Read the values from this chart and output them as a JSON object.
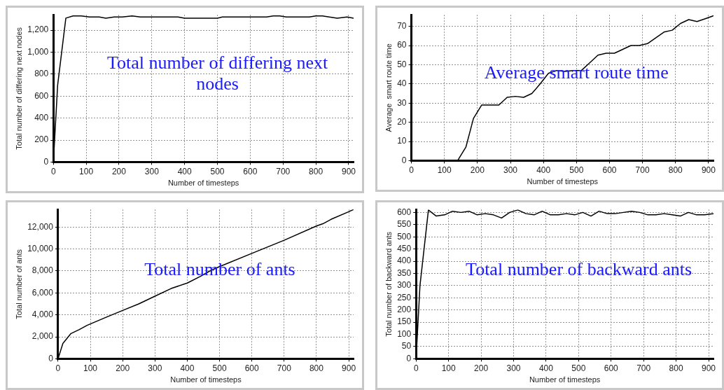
{
  "chart_data": [
    {
      "type": "line",
      "title": "Total number of differing next nodes",
      "xlabel": "Number of timesteps",
      "ylabel": "Total number of differing next nodes",
      "xlim": [
        0,
        915
      ],
      "ylim": [
        0,
        1340
      ],
      "xticks": [
        0,
        100,
        200,
        300,
        400,
        500,
        600,
        700,
        800,
        900
      ],
      "yticks": [
        0,
        200,
        400,
        600,
        800,
        {
          "value": 1000,
          "label": "1,000"
        },
        {
          "value": 1200,
          "label": "1,200"
        }
      ],
      "grid": true,
      "marker": "none",
      "line_style": "solid",
      "series": [
        {
          "color": "#000000",
          "x": [
            0,
            13,
            38,
            60,
            85,
            110,
            140,
            160,
            185,
            210,
            240,
            265,
            300,
            380,
            400,
            500,
            515,
            650,
            670,
            690,
            710,
            780,
            800,
            820,
            865,
            895,
            915
          ],
          "values": [
            0,
            700,
            1310,
            1330,
            1330,
            1320,
            1320,
            1310,
            1320,
            1320,
            1330,
            1320,
            1320,
            1320,
            1310,
            1310,
            1320,
            1320,
            1330,
            1330,
            1320,
            1320,
            1330,
            1330,
            1310,
            1320,
            1310
          ]
        }
      ]
    },
    {
      "type": "line",
      "title": "Average smart route time",
      "xlabel": "Number of timesteps",
      "ylabel": "Average  smart route time",
      "xlim": [
        0,
        915
      ],
      "ylim": [
        0,
        76
      ],
      "xticks": [
        0,
        100,
        200,
        300,
        400,
        500,
        600,
        700,
        800,
        900
      ],
      "yticks": [
        0,
        10,
        20,
        30,
        40,
        50,
        60,
        70
      ],
      "grid": true,
      "marker": "none",
      "line_style": "solid",
      "series": [
        {
          "color": "#000000",
          "x": [
            0,
            140,
            165,
            188,
            213,
            265,
            290,
            315,
            340,
            365,
            390,
            415,
            440,
            465,
            490,
            515,
            540,
            565,
            590,
            615,
            640,
            665,
            690,
            715,
            740,
            765,
            790,
            815,
            840,
            865,
            890,
            915
          ],
          "values": [
            0,
            0,
            7,
            22,
            29,
            29,
            33,
            33.5,
            33,
            35,
            40,
            45.5,
            47,
            46.5,
            47,
            47,
            51,
            55,
            56,
            56,
            58,
            60,
            60,
            61,
            64,
            67,
            68,
            71.5,
            73.5,
            72.5,
            74,
            75.5
          ]
        }
      ]
    },
    {
      "type": "line",
      "title": "Total number of ants",
      "xlabel": "Number of timesteps",
      "ylabel": "Total number of ants",
      "xlim": [
        0,
        915
      ],
      "ylim": [
        0,
        13600
      ],
      "xticks": [
        0,
        100,
        200,
        300,
        400,
        500,
        600,
        700,
        800,
        900
      ],
      "yticks": [
        0,
        {
          "value": 2000,
          "label": "2,000"
        },
        {
          "value": 4000,
          "label": "4,000"
        },
        {
          "value": 6000,
          "label": "6,000"
        },
        {
          "value": 8000,
          "label": "8,000"
        },
        {
          "value": 10000,
          "label": "10,000"
        },
        {
          "value": 12000,
          "label": "12,000"
        }
      ],
      "grid": true,
      "marker": "none",
      "line_style": "solid",
      "series": [
        {
          "color": "#000000",
          "x": [
            0,
            15,
            40,
            65,
            90,
            150,
            200,
            250,
            300,
            350,
            400,
            440,
            470,
            500,
            600,
            700,
            800,
            820,
            845,
            900,
            915
          ],
          "values": [
            0,
            1400,
            2300,
            2650,
            3050,
            3800,
            4400,
            5000,
            5700,
            6400,
            6900,
            7500,
            8000,
            8400,
            9600,
            10800,
            12100,
            12300,
            12700,
            13400,
            13600
          ]
        }
      ]
    },
    {
      "type": "line",
      "title": "Total number of backward ants",
      "xlabel": "Number of timesteps",
      "ylabel": "Total number of backward ants",
      "xlim": [
        0,
        915
      ],
      "ylim": [
        0,
        612
      ],
      "xticks": [
        0,
        100,
        200,
        300,
        400,
        500,
        600,
        700,
        800,
        900
      ],
      "yticks": [
        0,
        50,
        100,
        150,
        200,
        250,
        300,
        350,
        400,
        450,
        500,
        550,
        600
      ],
      "grid": true,
      "marker": "none",
      "line_style": "solid",
      "series": [
        {
          "color": "#000000",
          "x": [
            0,
            12,
            38,
            62,
            88,
            112,
            138,
            163,
            188,
            213,
            238,
            263,
            288,
            313,
            338,
            363,
            388,
            413,
            438,
            463,
            488,
            513,
            538,
            563,
            588,
            613,
            638,
            663,
            688,
            713,
            738,
            763,
            788,
            813,
            838,
            863,
            888,
            915
          ],
          "values": [
            0,
            300,
            610,
            585,
            590,
            605,
            600,
            605,
            590,
            595,
            590,
            577,
            600,
            610,
            595,
            590,
            605,
            590,
            590,
            595,
            590,
            600,
            585,
            605,
            595,
            595,
            600,
            605,
            600,
            590,
            590,
            595,
            590,
            585,
            600,
            590,
            590,
            595
          ]
        }
      ]
    }
  ]
}
